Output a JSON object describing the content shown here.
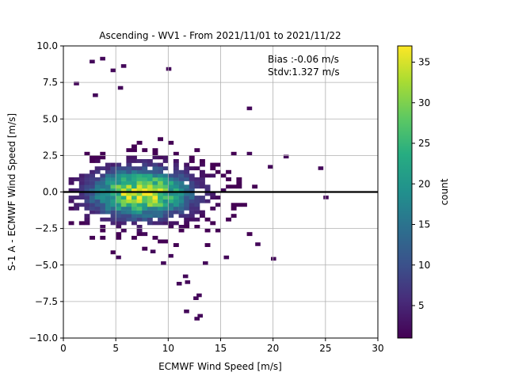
{
  "chart_data": {
    "type": "heatmap",
    "title": "Ascending - WV1 - From 2021/11/01 to 2021/11/22",
    "xlabel": "ECMWF Wind Speed [m/s]",
    "ylabel": "S-1 A - ECMWF Wind Speed [m/s]",
    "xlim": [
      0,
      30
    ],
    "ylim": [
      -10,
      10
    ],
    "x_ticks": [
      "0",
      "5",
      "10",
      "15",
      "20",
      "25",
      "30"
    ],
    "y_ticks": [
      "−10.0",
      "−7.5",
      "−5.0",
      "−2.5",
      "0.0",
      "2.5",
      "5.0",
      "7.5",
      "10.0"
    ],
    "grid": true,
    "reference_line_y": 0,
    "annotation": [
      "Bias :-0.06 m/s",
      "Stdv:1.327 m/s"
    ],
    "colorbar": {
      "label": "count",
      "range": [
        1,
        37
      ],
      "ticks": [
        "5",
        "10",
        "15",
        "20",
        "25",
        "30",
        "35"
      ],
      "colormap": "viridis"
    },
    "bin_size": [
      0.5,
      0.25
    ],
    "density_model": {
      "peak_center": [
        7.2,
        -0.2
      ],
      "peak_count": 37,
      "x_spread": 3.2,
      "y_spread": 1.1
    },
    "outliers": [
      [
        2.5,
        8.8
      ],
      [
        3.5,
        9.0
      ],
      [
        5.5,
        8.5
      ],
      [
        4.5,
        8.2
      ],
      [
        9.8,
        8.3
      ],
      [
        1.0,
        7.3
      ],
      [
        2.8,
        6.5
      ],
      [
        5.2,
        7.0
      ],
      [
        17.5,
        5.6
      ],
      [
        21.0,
        2.3
      ],
      [
        24.3,
        1.5
      ],
      [
        24.8,
        -0.5
      ],
      [
        19.5,
        1.6
      ],
      [
        17.5,
        2.5
      ],
      [
        19.8,
        -4.7
      ],
      [
        18.3,
        -3.7
      ],
      [
        12.8,
        -8.6
      ],
      [
        12.5,
        -8.8
      ],
      [
        10.8,
        -6.4
      ],
      [
        12.4,
        -7.4
      ],
      [
        11.5,
        -8.3
      ],
      [
        12.7,
        -7.2
      ],
      [
        11.4,
        -5.9
      ],
      [
        11.6,
        -6.3
      ],
      [
        5.0,
        -4.6
      ],
      [
        8.3,
        -4.2
      ],
      [
        10.0,
        -4.5
      ],
      [
        13.3,
        -5.0
      ],
      [
        15.3,
        -4.6
      ],
      [
        9.3,
        -5.0
      ]
    ]
  }
}
